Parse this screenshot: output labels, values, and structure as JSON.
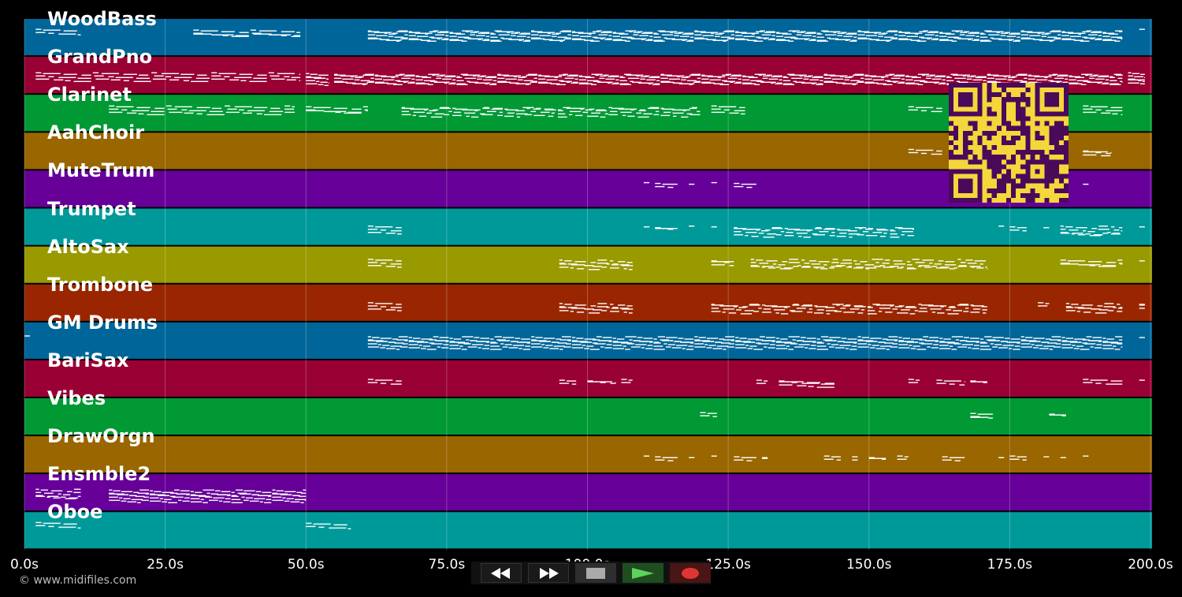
{
  "app": {
    "copyright": "© www.midifiles.com"
  },
  "timeline": {
    "ticks": [
      "0.0s",
      "25.0s",
      "50.0s",
      "75.0s",
      "100.0s",
      "125.0s",
      "150.0s",
      "175.0s",
      "200.0s"
    ]
  },
  "tracks": [
    {
      "label": "WoodBass",
      "color": "#006699",
      "notes": [
        [
          2,
          10,
          1
        ],
        [
          30,
          49,
          2
        ],
        [
          61,
          195,
          4
        ],
        [
          198,
          199,
          0
        ]
      ]
    },
    {
      "label": "GrandPno",
      "color": "#990033",
      "notes": [
        [
          2,
          49,
          2
        ],
        [
          50,
          54,
          6
        ],
        [
          55,
          195,
          5
        ],
        [
          196,
          199,
          5
        ]
      ]
    },
    {
      "label": "Clarinet",
      "color": "#009933",
      "notes": [
        [
          15,
          48,
          2
        ],
        [
          50,
          61,
          2
        ],
        [
          67,
          120,
          3
        ],
        [
          122,
          128,
          2
        ],
        [
          157,
          163,
          1
        ],
        [
          165,
          172,
          1
        ],
        [
          188,
          195,
          2
        ]
      ]
    },
    {
      "label": "AahChoir",
      "color": "#996600",
      "notes": [
        [
          157,
          163,
          1
        ],
        [
          165,
          172,
          1
        ],
        [
          188,
          193,
          2
        ]
      ]
    },
    {
      "label": "MuteTrum",
      "color": "#660099",
      "notes": [
        [
          110,
          111,
          0
        ],
        [
          112,
          116,
          1
        ],
        [
          118,
          119,
          0
        ],
        [
          122,
          123,
          0
        ],
        [
          126,
          130,
          1
        ],
        [
          188,
          189,
          0
        ]
      ]
    },
    {
      "label": "Trumpet",
      "color": "#009999",
      "notes": [
        [
          61,
          67,
          2
        ],
        [
          110,
          111,
          0
        ],
        [
          112,
          116,
          1
        ],
        [
          118,
          119,
          0
        ],
        [
          122,
          123,
          0
        ],
        [
          126,
          158,
          3
        ],
        [
          173,
          174,
          0
        ],
        [
          175,
          178,
          1
        ],
        [
          181,
          182,
          0
        ],
        [
          184,
          195,
          3
        ],
        [
          198,
          199,
          0
        ]
      ]
    },
    {
      "label": "AltoSax",
      "color": "#999900",
      "notes": [
        [
          61,
          67,
          2
        ],
        [
          95,
          108,
          3
        ],
        [
          122,
          126,
          2
        ],
        [
          129,
          171,
          3
        ],
        [
          184,
          195,
          2
        ],
        [
          198,
          199,
          0
        ]
      ]
    },
    {
      "label": "Trombone",
      "color": "#992600",
      "notes": [
        [
          61,
          67,
          2
        ],
        [
          95,
          108,
          3
        ],
        [
          122,
          171,
          3
        ],
        [
          180,
          182,
          1
        ],
        [
          185,
          195,
          3
        ],
        [
          198,
          199,
          2
        ]
      ]
    },
    {
      "label": "GM Drums",
      "color": "#006699",
      "notes": [
        [
          0,
          1,
          0
        ],
        [
          61,
          195,
          4
        ],
        [
          198,
          199,
          0
        ]
      ]
    },
    {
      "label": "BariSax",
      "color": "#990033",
      "notes": [
        [
          61,
          67,
          1
        ],
        [
          95,
          98,
          1
        ],
        [
          100,
          105,
          1
        ],
        [
          106,
          108,
          1
        ],
        [
          130,
          132,
          1
        ],
        [
          134,
          144,
          2
        ],
        [
          157,
          159,
          1
        ],
        [
          162,
          167,
          1
        ],
        [
          168,
          171,
          1
        ],
        [
          188,
          195,
          1
        ],
        [
          198,
          199,
          0
        ]
      ]
    },
    {
      "label": "Vibes",
      "color": "#009933",
      "notes": [
        [
          120,
          123,
          1
        ],
        [
          168,
          172,
          2
        ],
        [
          182,
          185,
          1
        ]
      ]
    },
    {
      "label": "DrawOrgn",
      "color": "#996600",
      "notes": [
        [
          110,
          111,
          0
        ],
        [
          112,
          116,
          1
        ],
        [
          118,
          119,
          0
        ],
        [
          122,
          123,
          0
        ],
        [
          126,
          130,
          1
        ],
        [
          131,
          132,
          1
        ],
        [
          142,
          145,
          1
        ],
        [
          147,
          148,
          1
        ],
        [
          150,
          153,
          1
        ],
        [
          155,
          157,
          1
        ],
        [
          163,
          167,
          1
        ],
        [
          173,
          174,
          0
        ],
        [
          175,
          178,
          1
        ],
        [
          181,
          182,
          0
        ],
        [
          184,
          185,
          0
        ],
        [
          188,
          189,
          0
        ]
      ]
    },
    {
      "label": "Ensmble2",
      "color": "#660099",
      "notes": [
        [
          2,
          10,
          3
        ],
        [
          15,
          50,
          4
        ]
      ]
    },
    {
      "label": "Oboe",
      "color": "#009999",
      "notes": [
        [
          2,
          10,
          1
        ],
        [
          50,
          58,
          1
        ]
      ]
    }
  ],
  "transport": {
    "rewind_icon": "rewind-icon",
    "forward_icon": "fast-forward-icon",
    "stop_icon": "stop-icon",
    "play_icon": "play-icon",
    "record_icon": "record-icon",
    "play_color": "#5cd35c",
    "record_color": "#e03535"
  }
}
